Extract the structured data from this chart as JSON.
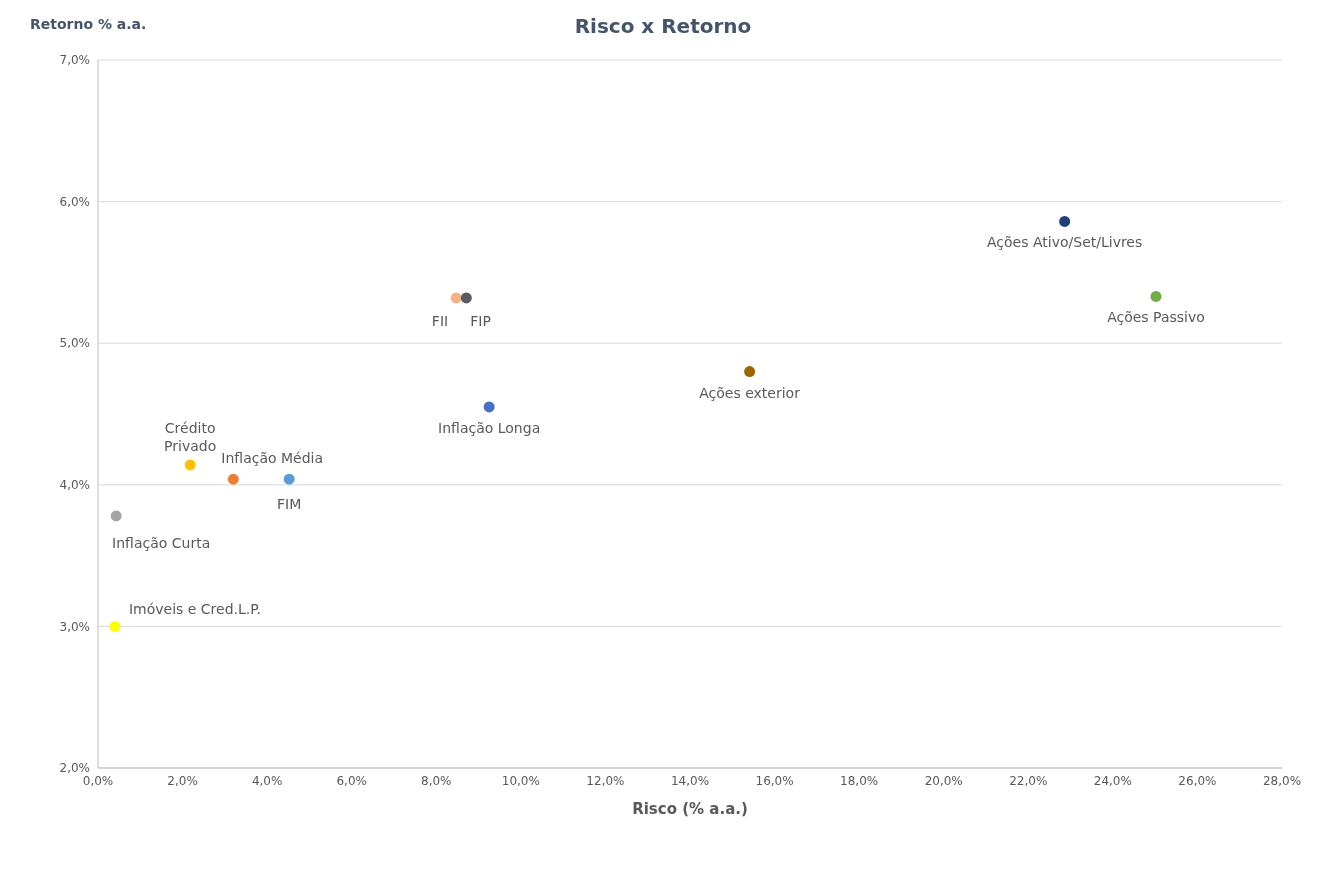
{
  "chart_data": {
    "type": "scatter",
    "title": "Risco x Retorno",
    "xlabel": "Risco (% a.a.)",
    "ylabel": "Retorno % a.a.",
    "series": [
      {
        "name": "Ações Ativo/Set/Livres",
        "color": "#1f3f7a",
        "x": [
          22.86
        ],
        "values": [
          5.86
        ]
      },
      {
        "name": "Ações Passivo",
        "color": "#70ad47",
        "x": [
          25.02
        ],
        "values": [
          5.33
        ]
      },
      {
        "name": "FII",
        "color": "#f4b183",
        "x": [
          8.47
        ],
        "values": [
          5.32
        ]
      },
      {
        "name": "FIP",
        "color": "#595966",
        "x": [
          8.71
        ],
        "values": [
          5.32
        ]
      },
      {
        "name": "Ações exterior",
        "color": "#9c6500",
        "x": [
          15.41
        ],
        "values": [
          4.8
        ]
      },
      {
        "name": "Inflação Longa",
        "color": "#4472c4",
        "x": [
          9.25
        ],
        "values": [
          4.55
        ]
      },
      {
        "name": "Crédito Privado",
        "color": "#ffc000",
        "x": [
          2.18
        ],
        "values": [
          4.14
        ]
      },
      {
        "name": "Inflação Média",
        "color": "#ed7d31",
        "x": [
          3.2
        ],
        "values": [
          4.04
        ]
      },
      {
        "name": "FIM",
        "color": "#5b9bd5",
        "x": [
          4.52
        ],
        "values": [
          4.04
        ]
      },
      {
        "name": "Inflação Curta",
        "color": "#a5a5a5",
        "x": [
          0.43
        ],
        "values": [
          3.78
        ]
      },
      {
        "name": "Imóveis e Cred.L.P.",
        "color": "#ffff00",
        "x": [
          0.4
        ],
        "values": [
          3.0
        ]
      }
    ],
    "xlim": [
      0,
      28
    ],
    "xticks": [
      {
        "value": 0,
        "label": "0,0%"
      },
      {
        "value": 2,
        "label": "2,0%"
      },
      {
        "value": 4,
        "label": "4,0%"
      },
      {
        "value": 6,
        "label": "6,0%"
      },
      {
        "value": 8,
        "label": "8,0%"
      },
      {
        "value": 10,
        "label": "10,0%"
      },
      {
        "value": 12,
        "label": "12,0%"
      },
      {
        "value": 14,
        "label": "14,0%"
      },
      {
        "value": 16,
        "label": "16,0%"
      },
      {
        "value": 18,
        "label": "18,0%"
      },
      {
        "value": 20,
        "label": "20,0%"
      },
      {
        "value": 22,
        "label": "22,0%"
      },
      {
        "value": 24,
        "label": "24,0%"
      },
      {
        "value": 26,
        "label": "26,0%"
      },
      {
        "value": 28,
        "label": "28,0%"
      }
    ],
    "ylim": [
      2,
      7
    ],
    "yticks": [
      {
        "value": 2,
        "label": "2,0%"
      },
      {
        "value": 3,
        "label": "3,0%"
      },
      {
        "value": 4,
        "label": "4,0%"
      },
      {
        "value": 5,
        "label": "5,0%"
      },
      {
        "value": 6,
        "label": "6,0%"
      },
      {
        "value": 7,
        "label": "7,0%"
      }
    ],
    "grid": "y",
    "legend": false,
    "marker": "circle"
  }
}
